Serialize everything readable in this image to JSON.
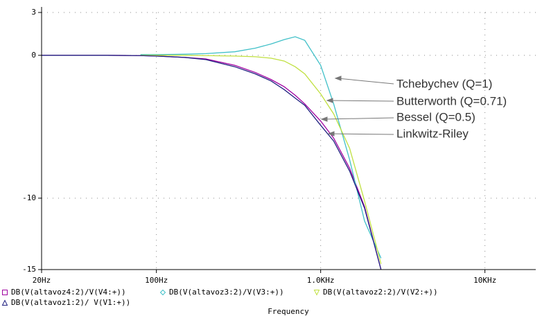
{
  "chart_data": {
    "type": "line",
    "x_label": "Frequency",
    "xscale": "log",
    "grid": true,
    "x": [
      20,
      30,
      50,
      80,
      100,
      150,
      200,
      300,
      400,
      500,
      600,
      700,
      800,
      1000,
      1200,
      1500,
      1850,
      2330
    ],
    "xlim": [
      20,
      20000
    ],
    "xticks": [
      {
        "value": 20,
        "label": "20Hz"
      },
      {
        "value": 100,
        "label": "100Hz"
      },
      {
        "value": 1000,
        "label": "1.0KHz"
      },
      {
        "value": 10000,
        "label": "10KHz"
      }
    ],
    "ylim": [
      -15,
      3
    ],
    "yticks": [
      3,
      0,
      -10,
      -15
    ],
    "series": [
      {
        "name": "DB(V(altavoz4:2)/V(V4:+))",
        "color": "#a000a0",
        "marker": "square",
        "values": [
          0,
          0,
          0,
          -0.02,
          -0.05,
          -0.15,
          -0.25,
          -0.7,
          -1.2,
          -1.7,
          -2.2,
          -2.8,
          -3.4,
          -4.6,
          -5.8,
          -7.9,
          -10.6,
          -15
        ]
      },
      {
        "name": "DB(V(altavoz3:2)/V(V3:+))",
        "color": "#40c0c8",
        "marker": "diamond",
        "values": [
          null,
          null,
          null,
          0.05,
          0.05,
          0.08,
          0.12,
          0.25,
          0.5,
          0.8,
          1.1,
          1.3,
          1.05,
          -0.7,
          -3.4,
          -7.3,
          -11.6,
          -14.2
        ]
      },
      {
        "name": "DB(V(altavoz2:2)/V(V2:+))",
        "color": "#c0e040",
        "marker": "triangle-down",
        "values": [
          null,
          null,
          null,
          0,
          0,
          0,
          -0.02,
          -0.05,
          -0.1,
          -0.2,
          -0.4,
          -0.8,
          -1.3,
          -2.7,
          -4.1,
          -6.5,
          -10.2,
          -14.6
        ]
      },
      {
        "name": "DB(V(altavoz1:2)/ V(V1:+))",
        "color": "#202080",
        "marker": "triangle",
        "values": [
          0,
          0,
          0,
          -0.02,
          -0.05,
          -0.15,
          -0.3,
          -0.8,
          -1.3,
          -1.8,
          -2.4,
          -3.0,
          -3.5,
          -4.9,
          -6.0,
          -8.1,
          -10.7,
          -15
        ]
      }
    ],
    "annotations": [
      "Tchebychev (Q=1)",
      "Butterworth (Q=0.71)",
      "Bessel (Q=0.5)",
      "Linkwitz-Riley"
    ]
  }
}
